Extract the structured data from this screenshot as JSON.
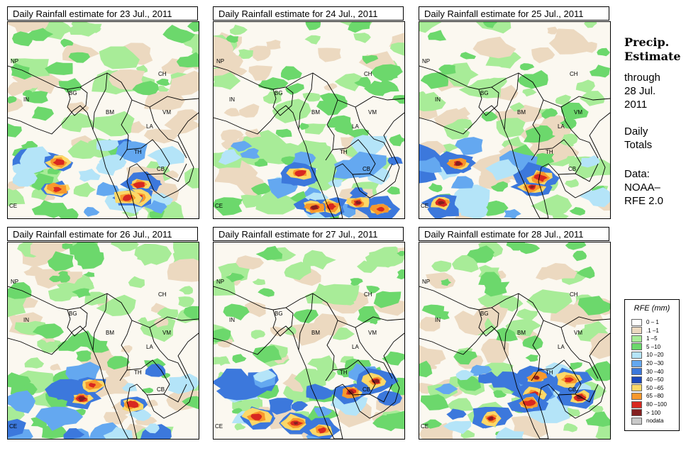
{
  "panels": [
    {
      "title": "Daily Rainfall estimate for  23 Jul., 2011",
      "seed": 23,
      "intensity": 1.05
    },
    {
      "title": "Daily Rainfall estimate for  24 Jul., 2011",
      "seed": 24,
      "intensity": 1.25
    },
    {
      "title": "Daily Rainfall estimate for  25 Jul., 2011",
      "seed": 25,
      "intensity": 0.85
    },
    {
      "title": "Daily Rainfall estimate for  26 Jul., 2011",
      "seed": 26,
      "intensity": 0.6
    },
    {
      "title": "Daily Rainfall estimate for  27 Jul., 2011",
      "seed": 27,
      "intensity": 0.95
    },
    {
      "title": "Daily Rainfall estimate for  28 Jul., 2011",
      "seed": 28,
      "intensity": 1.15
    }
  ],
  "country_labels": [
    "NP",
    "IN",
    "BG",
    "BM",
    "CH",
    "VM",
    "LA",
    "TH",
    "CB",
    "CE"
  ],
  "side": {
    "title_line1": "Precip.",
    "title_line2": "Estimate",
    "through": "through",
    "date_line1": "28 Jul.",
    "date_line2": "2011",
    "daily1": "Daily",
    "daily2": "Totals",
    "data1": "Data:",
    "data2": "NOAA–",
    "data3": "RFE 2.0"
  },
  "legend": {
    "title": "RFE (mm)",
    "items": [
      {
        "label": "0 – 1",
        "color": "#fefefe"
      },
      {
        "label": ".1 –1",
        "color": "#ecd9c0"
      },
      {
        "label": "1 –5",
        "color": "#a8ec98"
      },
      {
        "label": "5 –10",
        "color": "#6cd86c"
      },
      {
        "label": "10 –20",
        "color": "#b4e4f8"
      },
      {
        "label": "20 –30",
        "color": "#64a8f0"
      },
      {
        "label": "30 –40",
        "color": "#3c78dc"
      },
      {
        "label": "40 –50",
        "color": "#1c48bc"
      },
      {
        "label": "50 –65",
        "color": "#fcd868"
      },
      {
        "label": "65 –80",
        "color": "#f8982c"
      },
      {
        "label": "80 –100",
        "color": "#d82820"
      },
      {
        "label": "> 100",
        "color": "#842020"
      },
      {
        "label": "nodata",
        "color": "#c8c8c8"
      }
    ]
  }
}
